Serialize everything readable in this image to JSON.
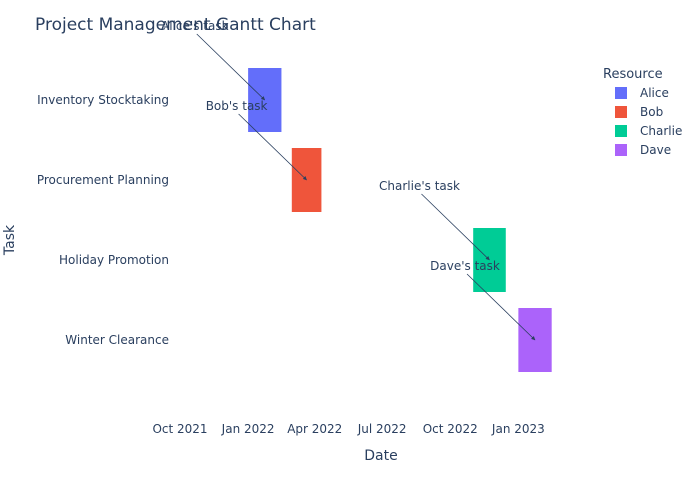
{
  "chart_data": {
    "type": "bar",
    "title": "Project Management Gantt Chart",
    "xlabel": "Date",
    "ylabel": "Task",
    "x_ticks": [
      "Oct 2021",
      "Jan 2022",
      "Apr 2022",
      "Jul 2022",
      "Oct 2022",
      "Jan 2023"
    ],
    "x_range": [
      "2021-10-01",
      "2023-04-01"
    ],
    "tasks": [
      "Inventory Stocktaking",
      "Procurement Planning",
      "Holiday Promotion",
      "Winter Clearance"
    ],
    "legend_title": "Resource",
    "legend_position": "top-right",
    "series": [
      {
        "name": "Alice",
        "task": "Inventory Stocktaking",
        "start": "2022-01-01",
        "end": "2022-02-15",
        "color": "#636efa",
        "annotation": "Alice's task"
      },
      {
        "name": "Bob",
        "task": "Procurement Planning",
        "start": "2022-03-01",
        "end": "2022-04-10",
        "color": "#ef553b",
        "annotation": "Bob's task"
      },
      {
        "name": "Charlie",
        "task": "Holiday Promotion",
        "start": "2022-11-01",
        "end": "2022-12-15",
        "color": "#00cc96",
        "annotation": "Charlie's task"
      },
      {
        "name": "Dave",
        "task": "Winter Clearance",
        "start": "2023-01-01",
        "end": "2023-02-15",
        "color": "#ab63fa",
        "annotation": "Dave's task"
      }
    ],
    "grid": false
  }
}
